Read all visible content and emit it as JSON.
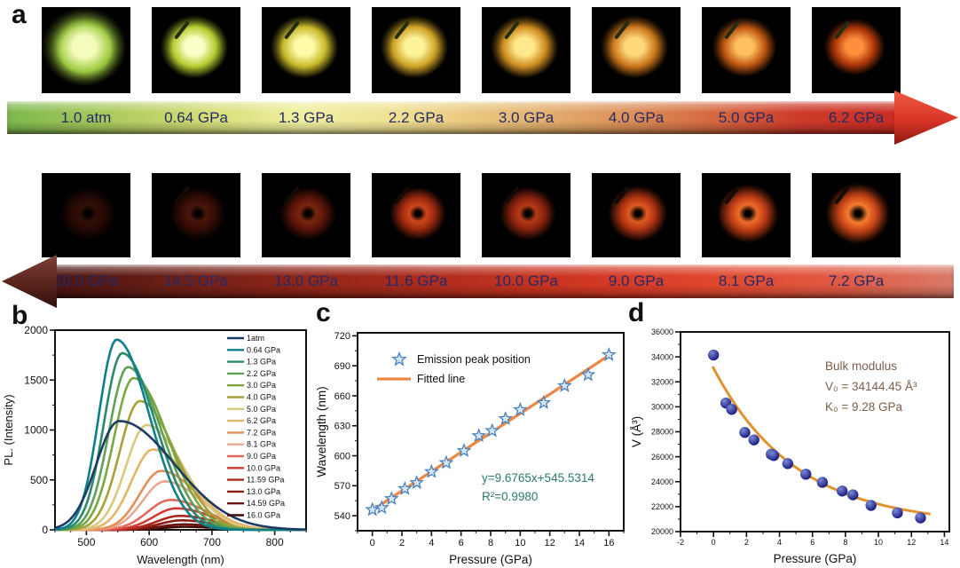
{
  "panels": {
    "a": "a",
    "b": "b",
    "c": "c",
    "d": "d"
  },
  "panel_a": {
    "top_row": {
      "direction": "right",
      "arrow_gradient": [
        "#7cb84c",
        "#a9c95c",
        "#d3dc74",
        "#f0efa0",
        "#efe092",
        "#e7bd78",
        "#de9a5e",
        "#d66f44",
        "#cd3b2a",
        "#cb2d23"
      ],
      "arrowhead_color": "#d93527",
      "label_color": "#232a66",
      "items": [
        {
          "label": "1.0 atm",
          "core": "#f4fbbb",
          "glow": "#9cc93e",
          "spread": 1.25,
          "needle": false,
          "op": 1
        },
        {
          "label": "0.64 GPa",
          "core": "#fbffc6",
          "glow": "#b6cc30",
          "spread": 1.0,
          "needle": true,
          "op": 1
        },
        {
          "label": "1.3 GPa",
          "core": "#fdfba8",
          "glow": "#c9b92a",
          "spread": 1.0,
          "needle": true,
          "op": 1
        },
        {
          "label": "2.2 GPa",
          "core": "#fdf49a",
          "glow": "#cfa326",
          "spread": 1.0,
          "needle": true,
          "op": 1
        },
        {
          "label": "3.0 GPa",
          "core": "#ffe98c",
          "glow": "#cf8d20",
          "spread": 1.0,
          "needle": true,
          "op": 1
        },
        {
          "label": "4.0 GPa",
          "core": "#ffd97b",
          "glow": "#cb761b",
          "spread": 1.0,
          "needle": true,
          "op": 1
        },
        {
          "label": "5.0 GPa",
          "core": "#ffc060",
          "glow": "#c25812",
          "spread": 0.95,
          "needle": true,
          "op": 1
        },
        {
          "label": "6.2 GPa",
          "core": "#ff8f3c",
          "glow": "#b33a0a",
          "spread": 0.9,
          "needle": true,
          "op": 1
        }
      ]
    },
    "bottom_row": {
      "direction": "left",
      "arrow_gradient": [
        "#4a1512",
        "#6b1f16",
        "#8a2418",
        "#a52a1c",
        "#c0311f",
        "#d63a26",
        "#e04a30",
        "#e05a44",
        "#d87a68"
      ],
      "arrowhead_color": "#5a241d",
      "label_color": "#232a66",
      "items": [
        {
          "label": "16.0 GPa",
          "core": "#5a1a0c",
          "glow": "#481108",
          "spread": 1.0,
          "needle": false,
          "op": 0.55
        },
        {
          "label": "14.5 GPa",
          "core": "#7a2410",
          "glow": "#5c150a",
          "spread": 1.0,
          "needle": true,
          "op": 0.6
        },
        {
          "label": "13.0 GPa",
          "core": "#a03214",
          "glow": "#7c1c0c",
          "spread": 1.0,
          "needle": true,
          "op": 0.75
        },
        {
          "label": "11.6 GPa",
          "core": "#d84a1c",
          "glow": "#a82c10",
          "spread": 1.0,
          "needle": true,
          "op": 0.95
        },
        {
          "label": "10.0 GPa",
          "core": "#c84018",
          "glow": "#9c2810",
          "spread": 1.0,
          "needle": true,
          "op": 0.9
        },
        {
          "label": "9.0 GPa",
          "core": "#e05a20",
          "glow": "#b03412",
          "spread": 1.05,
          "needle": true,
          "op": 1
        },
        {
          "label": "8.1 GPa",
          "core": "#ee6c28",
          "glow": "#bc3c14",
          "spread": 1.1,
          "needle": true,
          "op": 1
        },
        {
          "label": "7.2 GPa",
          "core": "#f67c30",
          "glow": "#c64416",
          "spread": 1.15,
          "needle": true,
          "op": 1
        }
      ]
    }
  },
  "chart_data": [
    {
      "id": "b",
      "type": "line",
      "xlabel": "Wavelength (nm)",
      "ylabel": "PL. (Intensity)",
      "xlim": [
        450,
        850
      ],
      "ylim": [
        0,
        2000
      ],
      "xticks": [
        500,
        600,
        700,
        800
      ],
      "yticks": [
        0,
        500,
        1000,
        1500,
        2000
      ],
      "x_minor_step": 25,
      "y_minor_step": 250,
      "legend_position": "top-right",
      "grid": false,
      "series": [
        {
          "name": "1atm",
          "color": "#1d3c63",
          "peak_nm": 552,
          "peak_intensity": 1090,
          "sigma_l": 36,
          "sigma_r": 88
        },
        {
          "name": "0.64 GPa",
          "color": "#0f7f8a",
          "peak_nm": 548,
          "peak_intensity": 1905,
          "sigma_l": 28,
          "sigma_r": 52
        },
        {
          "name": "1.3 GPa",
          "color": "#2a8a6b",
          "peak_nm": 557,
          "peak_intensity": 1770,
          "sigma_l": 29,
          "sigma_r": 53
        },
        {
          "name": "2.2 GPa",
          "color": "#61a057",
          "peak_nm": 566,
          "peak_intensity": 1630,
          "sigma_l": 30,
          "sigma_r": 54
        },
        {
          "name": "3.0 GPa",
          "color": "#7aa83f",
          "peak_nm": 575,
          "peak_intensity": 1520,
          "sigma_l": 31,
          "sigma_r": 55
        },
        {
          "name": "4.0 GPa",
          "color": "#a8a13a",
          "peak_nm": 585,
          "peak_intensity": 1290,
          "sigma_l": 32,
          "sigma_r": 56
        },
        {
          "name": "5.0 GPa",
          "color": "#d9c87e",
          "peak_nm": 596,
          "peak_intensity": 1050,
          "sigma_l": 33,
          "sigma_r": 58
        },
        {
          "name": "6.2 GPa",
          "color": "#e5b569",
          "peak_nm": 606,
          "peak_intensity": 805,
          "sigma_l": 34,
          "sigma_r": 60
        },
        {
          "name": "7.2 GPa",
          "color": "#e38f58",
          "peak_nm": 619,
          "peak_intensity": 590,
          "sigma_l": 34,
          "sigma_r": 58
        },
        {
          "name": "8.1 GPa",
          "color": "#e7a895",
          "peak_nm": 625,
          "peak_intensity": 485,
          "sigma_l": 35,
          "sigma_r": 58
        },
        {
          "name": "9.0 GPa",
          "color": "#e06a5c",
          "peak_nm": 634,
          "peak_intensity": 300,
          "sigma_l": 36,
          "sigma_r": 58
        },
        {
          "name": "10.0 GPa",
          "color": "#d43a31",
          "peak_nm": 643,
          "peak_intensity": 215,
          "sigma_l": 36,
          "sigma_r": 58
        },
        {
          "name": "11.59 GPa",
          "color": "#ab2a20",
          "peak_nm": 649,
          "peak_intensity": 140,
          "sigma_l": 36,
          "sigma_r": 56
        },
        {
          "name": "13.0 GPa",
          "color": "#8c1d15",
          "peak_nm": 652,
          "peak_intensity": 95,
          "sigma_l": 36,
          "sigma_r": 54
        },
        {
          "name": "14.59 GPa",
          "color": "#6a120d",
          "peak_nm": 655,
          "peak_intensity": 55,
          "sigma_l": 36,
          "sigma_r": 52
        },
        {
          "name": "16.0 GPa",
          "color": "#430c08",
          "peak_nm": 658,
          "peak_intensity": 30,
          "sigma_l": 36,
          "sigma_r": 50
        }
      ]
    },
    {
      "id": "c",
      "type": "scatter",
      "xlabel": "Pressure (GPa)",
      "ylabel": "Wavelength (nm)",
      "xlim": [
        -1,
        17
      ],
      "ylim": [
        525,
        723
      ],
      "xticks": [
        0,
        2,
        4,
        6,
        8,
        10,
        12,
        14,
        16
      ],
      "yticks": [
        540,
        570,
        600,
        630,
        660,
        690,
        720
      ],
      "x_minor_step": 1,
      "y_minor_step": 15,
      "grid": false,
      "legend": [
        {
          "marker": "star",
          "label": "Emission peak position",
          "color": "#4a82bd",
          "fill": "#d6e6f4"
        },
        {
          "marker": "line",
          "label": "Fitted line",
          "color": "#ec8744"
        }
      ],
      "points": [
        [
          0,
          546
        ],
        [
          0.64,
          548
        ],
        [
          1.3,
          557
        ],
        [
          2.2,
          567
        ],
        [
          3.0,
          573
        ],
        [
          4.0,
          584
        ],
        [
          5.0,
          593
        ],
        [
          6.2,
          605
        ],
        [
          7.2,
          620
        ],
        [
          8.1,
          625
        ],
        [
          9.0,
          637
        ],
        [
          10.0,
          646
        ],
        [
          11.59,
          653
        ],
        [
          13.0,
          670
        ],
        [
          14.59,
          681
        ],
        [
          16.0,
          701
        ]
      ],
      "fit": {
        "slope": 9.6765,
        "intercept": 545.5314,
        "x_start": 0,
        "x_end": 16.2,
        "color": "#ec8744"
      },
      "annotation": {
        "lines": [
          "y=9.6765x+545.5314",
          "R²=0.9980"
        ],
        "color": "#2d7a6e"
      }
    },
    {
      "id": "d",
      "type": "scatter",
      "xlabel": "Pressure (GPa)",
      "ylabel": "V (Å³)",
      "xlim": [
        -2,
        14.3
      ],
      "ylim": [
        20000,
        36000
      ],
      "xticks": [
        -2,
        0,
        2,
        4,
        6,
        8,
        10,
        12,
        14
      ],
      "yticks": [
        20000,
        22000,
        24000,
        26000,
        28000,
        30000,
        32000,
        34000,
        36000
      ],
      "x_minor_step": 1,
      "y_minor_step": 1000,
      "grid": false,
      "points": [
        [
          0,
          34150
        ],
        [
          0.75,
          30300
        ],
        [
          1.1,
          29800
        ],
        [
          1.9,
          27950
        ],
        [
          2.45,
          27350
        ],
        [
          3.5,
          26200
        ],
        [
          3.65,
          26100
        ],
        [
          4.5,
          25450
        ],
        [
          5.6,
          24600
        ],
        [
          6.6,
          23950
        ],
        [
          7.8,
          23250
        ],
        [
          8.45,
          22950
        ],
        [
          9.55,
          22100
        ],
        [
          11.15,
          21500
        ],
        [
          12.55,
          21100
        ]
      ],
      "marker": {
        "shape": "sphere",
        "color_dark": "#15157a",
        "color_light": "#7b8bd8"
      },
      "fit": {
        "type": "exp-decay",
        "V_inf": 20500,
        "A": 12600,
        "tau": 5.0,
        "x_start": -0.05,
        "x_end": 13.2,
        "color": "#e0922e"
      },
      "annotation": {
        "lines": [
          "Bulk modulus",
          "V₀ = 34144.45 Å³",
          "K₀ = 9.28 GPa"
        ],
        "color": "#7d5f49"
      }
    }
  ]
}
